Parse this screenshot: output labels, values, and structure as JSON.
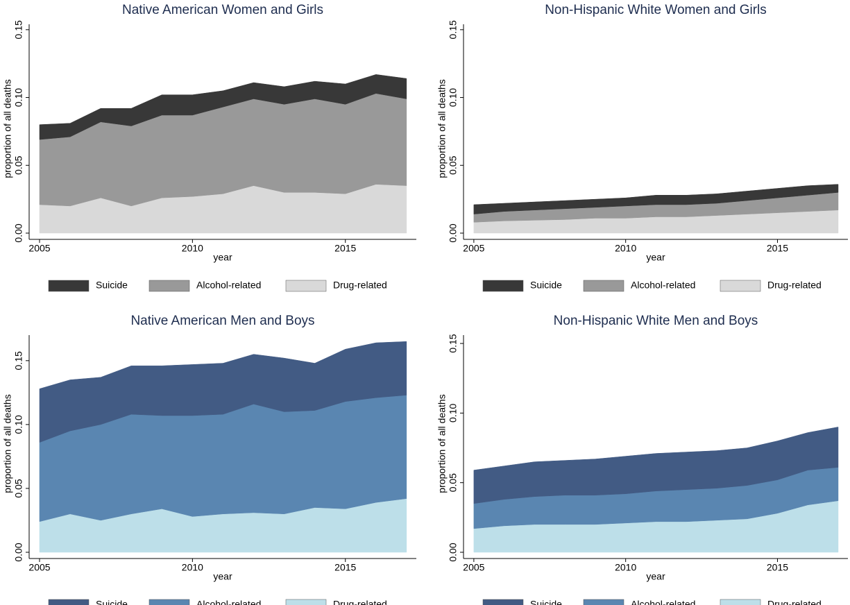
{
  "chart_data": [
    {
      "type": "area",
      "title": "Native American Women and Girls",
      "xlabel": "year",
      "ylabel": "proportion of all deaths",
      "x": [
        2005,
        2006,
        2007,
        2008,
        2009,
        2010,
        2011,
        2012,
        2013,
        2014,
        2015,
        2016,
        2017
      ],
      "series": [
        {
          "name": "Suicide",
          "color": "#383838",
          "values": [
            0.011,
            0.01,
            0.01,
            0.013,
            0.015,
            0.015,
            0.012,
            0.012,
            0.013,
            0.013,
            0.015,
            0.014,
            0.015
          ]
        },
        {
          "name": "Alcohol-related",
          "color": "#999999",
          "values": [
            0.048,
            0.051,
            0.056,
            0.059,
            0.061,
            0.06,
            0.064,
            0.064,
            0.065,
            0.069,
            0.066,
            0.067,
            0.064
          ]
        },
        {
          "name": "Drug-related",
          "color": "#d9d9d9",
          "values": [
            0.021,
            0.02,
            0.026,
            0.02,
            0.026,
            0.027,
            0.029,
            0.035,
            0.03,
            0.03,
            0.029,
            0.036,
            0.035
          ]
        }
      ],
      "xlim": [
        2004.66,
        2017.32
      ],
      "ylim": [
        0,
        0.154
      ],
      "xticks": [
        2005,
        2010,
        2015
      ],
      "yticks": [
        {
          "value": 0,
          "label": "0.00"
        },
        {
          "value": 0.05,
          "label": "0.05"
        },
        {
          "value": 0.1,
          "label": "0.10"
        },
        {
          "value": 0.15,
          "label": "0.15"
        }
      ]
    },
    {
      "type": "area",
      "title": "Non-Hispanic White Women and Girls",
      "xlabel": "year",
      "ylabel": "proportion of all deaths",
      "x": [
        2005,
        2006,
        2007,
        2008,
        2009,
        2010,
        2011,
        2012,
        2013,
        2014,
        2015,
        2016,
        2017
      ],
      "series": [
        {
          "name": "Suicide",
          "color": "#383838",
          "values": [
            0.007,
            0.006,
            0.006,
            0.006,
            0.006,
            0.006,
            0.007,
            0.007,
            0.007,
            0.007,
            0.007,
            0.007,
            0.006
          ]
        },
        {
          "name": "Alcohol-related",
          "color": "#999999",
          "values": [
            0.006,
            0.007,
            0.0075,
            0.008,
            0.008,
            0.009,
            0.009,
            0.009,
            0.009,
            0.01,
            0.011,
            0.012,
            0.013
          ]
        },
        {
          "name": "Drug-related",
          "color": "#d9d9d9",
          "values": [
            0.008,
            0.009,
            0.0095,
            0.01,
            0.011,
            0.011,
            0.012,
            0.012,
            0.013,
            0.014,
            0.015,
            0.016,
            0.017
          ]
        }
      ],
      "xlim": [
        2004.66,
        2017.32
      ],
      "ylim": [
        0,
        0.154
      ],
      "xticks": [
        2005,
        2010,
        2015
      ],
      "yticks": [
        {
          "value": 0,
          "label": "0.00"
        },
        {
          "value": 0.05,
          "label": "0.05"
        },
        {
          "value": 0.1,
          "label": "0.10"
        },
        {
          "value": 0.15,
          "label": "0.15"
        }
      ]
    },
    {
      "type": "area",
      "title": "Native American Men and Boys",
      "xlabel": "year",
      "ylabel": "proportion of all deaths",
      "x": [
        2005,
        2006,
        2007,
        2008,
        2009,
        2010,
        2011,
        2012,
        2013,
        2014,
        2015,
        2016,
        2017
      ],
      "series": [
        {
          "name": "Suicide",
          "color": "#425b84",
          "values": [
            0.042,
            0.04,
            0.037,
            0.038,
            0.039,
            0.04,
            0.04,
            0.039,
            0.042,
            0.037,
            0.041,
            0.043,
            0.042
          ]
        },
        {
          "name": "Alcohol-related",
          "color": "#5a86b1",
          "values": [
            0.062,
            0.065,
            0.075,
            0.078,
            0.073,
            0.079,
            0.078,
            0.085,
            0.08,
            0.076,
            0.084,
            0.082,
            0.081
          ]
        },
        {
          "name": "Drug-related",
          "color": "#bddfe9",
          "values": [
            0.024,
            0.03,
            0.025,
            0.03,
            0.034,
            0.028,
            0.03,
            0.031,
            0.03,
            0.035,
            0.034,
            0.039,
            0.042
          ]
        }
      ],
      "xlim": [
        2004.66,
        2017.32
      ],
      "ylim": [
        0,
        0.17
      ],
      "xticks": [
        2005,
        2010,
        2015
      ],
      "yticks": [
        {
          "value": 0,
          "label": "0.00"
        },
        {
          "value": 0.05,
          "label": "0.05"
        },
        {
          "value": 0.1,
          "label": "0.10"
        },
        {
          "value": 0.15,
          "label": "0.15"
        }
      ]
    },
    {
      "type": "area",
      "title": "Non-Hispanic White Men and Boys",
      "xlabel": "year",
      "ylabel": "proportion of all deaths",
      "x": [
        2005,
        2006,
        2007,
        2008,
        2009,
        2010,
        2011,
        2012,
        2013,
        2014,
        2015,
        2016,
        2017
      ],
      "series": [
        {
          "name": "Suicide",
          "color": "#425b84",
          "values": [
            0.024,
            0.024,
            0.025,
            0.025,
            0.026,
            0.027,
            0.027,
            0.027,
            0.027,
            0.027,
            0.028,
            0.027,
            0.029
          ]
        },
        {
          "name": "Alcohol-related",
          "color": "#5a86b1",
          "values": [
            0.018,
            0.019,
            0.02,
            0.021,
            0.021,
            0.021,
            0.022,
            0.023,
            0.023,
            0.024,
            0.024,
            0.025,
            0.024
          ]
        },
        {
          "name": "Drug-related",
          "color": "#bddfe9",
          "values": [
            0.017,
            0.019,
            0.02,
            0.02,
            0.02,
            0.021,
            0.022,
            0.022,
            0.023,
            0.024,
            0.028,
            0.034,
            0.037
          ]
        }
      ],
      "xlim": [
        2004.66,
        2017.32
      ],
      "ylim": [
        0,
        0.156
      ],
      "xticks": [
        2005,
        2010,
        2015
      ],
      "yticks": [
        {
          "value": 0,
          "label": "0.00"
        },
        {
          "value": 0.05,
          "label": "0.05"
        },
        {
          "value": 0.1,
          "label": "0.10"
        },
        {
          "value": 0.15,
          "label": "0.15"
        }
      ]
    }
  ]
}
